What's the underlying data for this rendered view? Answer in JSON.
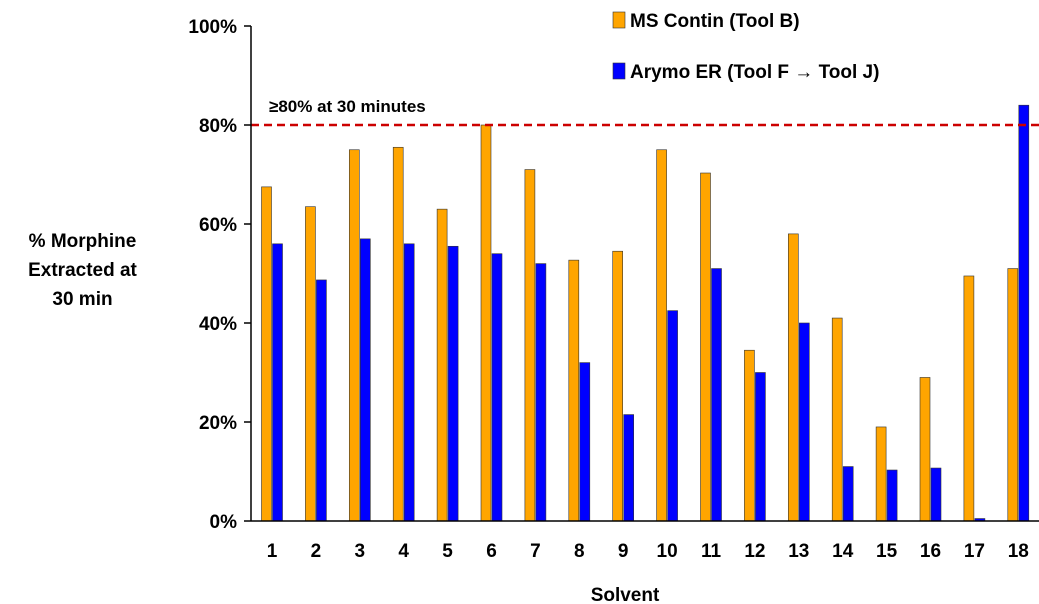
{
  "chart_data": {
    "type": "bar",
    "title": "",
    "ylabel_lines": [
      "% Morphine",
      "Extracted at",
      "30 min"
    ],
    "xlabel": "Solvent",
    "categories": [
      "1",
      "2",
      "3",
      "4",
      "5",
      "6",
      "7",
      "8",
      "9",
      "10",
      "11",
      "12",
      "13",
      "14",
      "15",
      "16",
      "17",
      "18"
    ],
    "ylim": [
      0,
      100
    ],
    "yticks": [
      0,
      20,
      40,
      60,
      80,
      100
    ],
    "ytick_labels": [
      "0%",
      "20%",
      "40%",
      "60%",
      "80%",
      "100%"
    ],
    "series": [
      {
        "name": "MS Contin (Tool B)",
        "color": "#FFA500",
        "values": [
          67.5,
          63.5,
          75,
          75.5,
          63,
          80,
          71,
          52.7,
          54.5,
          75,
          70.3,
          34.5,
          58,
          41,
          19,
          29,
          49.5,
          51
        ]
      },
      {
        "name": "Arymo ER (Tool F → Tool J)",
        "color": "#0000FF",
        "values": [
          56,
          48.7,
          57,
          56,
          55.5,
          54,
          52,
          32,
          21.5,
          42.5,
          51,
          30,
          40,
          11,
          10.3,
          10.7,
          0.5,
          84
        ]
      }
    ],
    "threshold": {
      "value": 80,
      "label": "≥80% at 30 minutes",
      "color": "#CC0000",
      "style": "dashed"
    },
    "legend_position": "top-right",
    "grid": false
  }
}
